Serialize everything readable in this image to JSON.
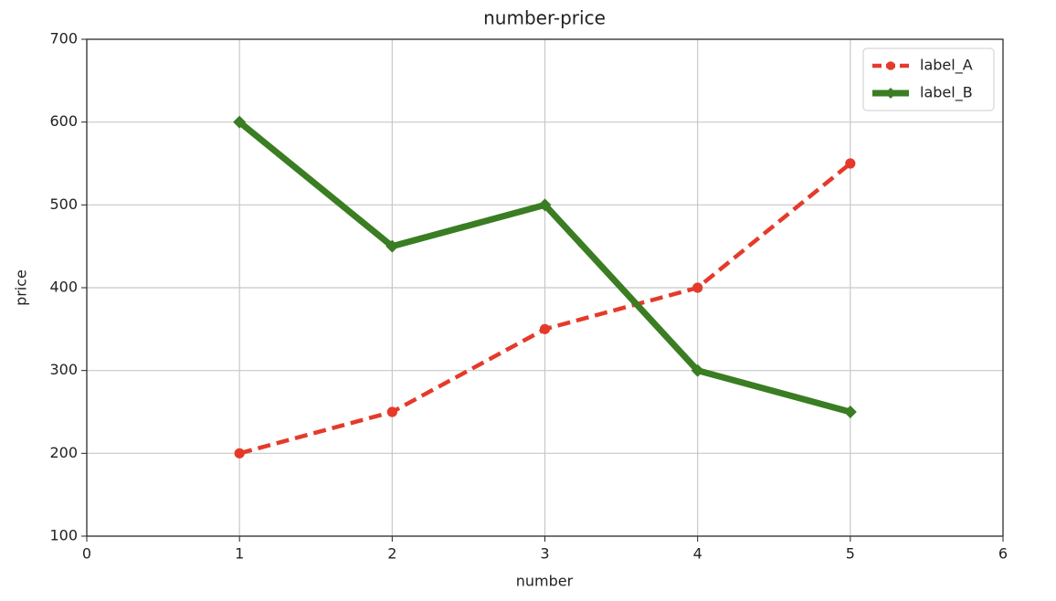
{
  "chart_data": {
    "type": "line",
    "title": "number-price",
    "x_label": "number",
    "y_label": "price",
    "x": [
      1,
      2,
      3,
      4,
      5
    ],
    "series": [
      {
        "name": "label_A",
        "color": "#e53a2a",
        "linestyle": "dashed",
        "marker": "circle",
        "values": [
          200,
          250,
          350,
          400,
          550
        ]
      },
      {
        "name": "label_B",
        "color": "#3a7d22",
        "linestyle": "solid",
        "marker": "diamond",
        "values": [
          600,
          450,
          500,
          300,
          250
        ]
      }
    ],
    "xlim": [
      0,
      6
    ],
    "xticks": [
      0,
      1,
      2,
      3,
      4,
      5,
      6
    ],
    "ylim": [
      100,
      700
    ],
    "yticks": [
      100,
      200,
      300,
      400,
      500,
      600,
      700
    ],
    "grid": true,
    "legend": "upper-right"
  }
}
